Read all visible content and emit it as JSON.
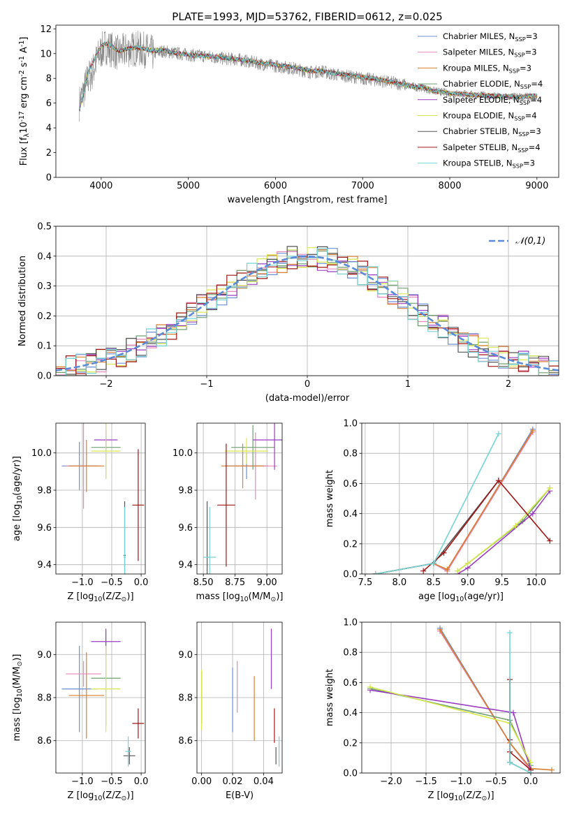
{
  "figure_title": "PLATE=1993, MJD=53762, FIBERID=0612, z=0.025",
  "model_names": [
    "Chabrier MILES",
    "Salpeter MILES",
    "Kroupa MILES",
    "Chabrier ELODIE",
    "Salpeter ELODIE",
    "Kroupa ELODIE",
    "Chabrier STELIB",
    "Salpeter STELIB",
    "Kroupa STELIB"
  ],
  "model_colors": [
    "#6b8fd6",
    "#e888b8",
    "#d67f2e",
    "#6f9f6f",
    "#9a3cc0",
    "#d8e84a",
    "#555555",
    "#a01515",
    "#76d4d4"
  ],
  "model_nssp": [
    3,
    3,
    3,
    4,
    4,
    4,
    3,
    4,
    3
  ],
  "chart_data": [
    {
      "id": "spectrum",
      "type": "line",
      "title": "",
      "xlabel": "wavelength [Angstrom, rest frame]",
      "ylabel": "Flux [f$_\\lambda$10$^{-17}$ erg cm$^{-2}$ s$^{-1}$ A$^{-1}$]",
      "xlim": [
        3480,
        9250
      ],
      "ylim": [
        0,
        12.3
      ],
      "xticks": [
        4000,
        5000,
        6000,
        7000,
        8000,
        9000
      ],
      "yticks": [
        0,
        2,
        4,
        6,
        8,
        10,
        12
      ],
      "grid": false,
      "legend_position": "upper right",
      "legend": [
        "Chabrier MILES, N$_{SSP}$=3",
        "Salpeter MILES, N$_{SSP}$=3",
        "Kroupa MILES, N$_{SSP}$=3",
        "Chabrier ELODIE, N$_{SSP}$=4",
        "Salpeter ELODIE, N$_{SSP}$=4",
        "Kroupa ELODIE, N$_{SSP}$=4",
        "Chabrier STELIB, N$_{SSP}$=3",
        "Salpeter STELIB, N$_{SSP}$=4",
        "Kroupa STELIB, N$_{SSP}$=3"
      ],
      "data_series": {
        "name": "data",
        "color": "#888888",
        "x": [
          3750,
          3800,
          3850,
          3900,
          3950,
          4000,
          4050,
          4100,
          4200,
          4300,
          4400,
          4500,
          4600,
          4700,
          4800,
          4900,
          5000,
          5200,
          5400,
          5600,
          5800,
          6000,
          6200,
          6400,
          6550,
          6600,
          6800,
          7000,
          7200,
          7400,
          7600,
          7700,
          7800,
          7900,
          8000,
          8200,
          8400,
          8600,
          8800,
          9000
        ],
        "y": [
          6.0,
          7.0,
          8.0,
          8.5,
          9.5,
          10.2,
          10.6,
          10.4,
          10.0,
          10.3,
          10.4,
          10.3,
          10.0,
          10.2,
          10.1,
          10.0,
          9.9,
          9.8,
          9.6,
          9.5,
          9.2,
          9.0,
          8.8,
          8.5,
          8.6,
          8.4,
          8.2,
          8.0,
          7.8,
          7.6,
          7.3,
          7.2,
          7.0,
          6.9,
          6.8,
          6.7,
          6.6,
          6.5,
          6.5,
          6.5
        ]
      },
      "model_x": [
        3750,
        3800,
        3850,
        3900,
        3950,
        4000,
        4050,
        4100,
        4200,
        4300,
        4400,
        4500,
        4600,
        4700,
        4800,
        4900,
        5000,
        5200,
        5400,
        5600,
        5800,
        6000,
        6200,
        6400,
        6550,
        6600,
        6800,
        7000,
        7200,
        7400,
        7600,
        7700,
        7800,
        7900,
        8000,
        8200,
        8400,
        8600,
        8800,
        9000
      ],
      "model_y": [
        5.5,
        6.8,
        8.5,
        9.2,
        10.0,
        10.6,
        10.8,
        10.7,
        10.2,
        10.4,
        10.5,
        10.4,
        10.2,
        10.3,
        10.1,
        10.0,
        9.9,
        9.8,
        9.7,
        9.5,
        9.3,
        9.1,
        8.9,
        8.6,
        8.6,
        8.5,
        8.3,
        8.1,
        7.9,
        7.6,
        7.3,
        7.3,
        7.0,
        6.9,
        6.8,
        6.7,
        6.6,
        6.55,
        6.5,
        6.6
      ]
    },
    {
      "id": "residuals",
      "type": "histogram",
      "title": "",
      "xlabel": "(data-model)/error",
      "ylabel": "Normed distribution",
      "xlim": [
        -2.5,
        2.5
      ],
      "ylim": [
        0,
        0.5
      ],
      "xticks": [
        -2,
        -1,
        0,
        1,
        2
      ],
      "yticks": [
        0.0,
        0.1,
        0.2,
        0.3,
        0.4,
        0.5
      ],
      "grid": true,
      "legend_position": "upper right",
      "legend": [
        "$\\mathcal{N}(0,1)$"
      ],
      "bin_width": 0.1,
      "reference_curve": {
        "name": "N(0,1)",
        "color": "#5a8ad8",
        "style": "dashed"
      }
    },
    {
      "id": "age_vs_Z",
      "type": "errorbar",
      "xlabel": "Z [log$_{10}$($Z/Z_\\odot$)]",
      "ylabel": "age  [log$_{10}$($age/yr$)]",
      "xlim": [
        -1.45,
        0.07
      ],
      "ylim": [
        9.35,
        10.16
      ],
      "xticks": [
        -1.0,
        -0.5,
        0.0
      ],
      "yticks": [
        9.4,
        9.6,
        9.8,
        10.0
      ],
      "grid": true,
      "points": [
        {
          "x": -1.05,
          "y": 9.93,
          "xerr": 0.3,
          "yerr": 0.13
        },
        {
          "x": -0.98,
          "y": 9.93,
          "xerr": 0.3,
          "yerr": 0.23
        },
        {
          "x": -0.93,
          "y": 9.93,
          "xerr": 0.3,
          "yerr": 0.14
        },
        {
          "x": -0.6,
          "y": 10.03,
          "xerr": 0.25,
          "yerr": 0.17
        },
        {
          "x": -0.6,
          "y": 10.07,
          "xerr": 0.2,
          "yerr": 0.05
        },
        {
          "x": -0.6,
          "y": 10.01,
          "xerr": 0.25,
          "yerr": 0.15
        },
        {
          "x": -0.28,
          "y": 9.45,
          "xerr": 0.02,
          "yerr": 0.29
        },
        {
          "x": -0.05,
          "y": 9.72,
          "xerr": 0.1,
          "yerr": 0.3
        },
        {
          "x": -0.28,
          "y": 9.44,
          "xerr": 0.02,
          "yerr": 0.27
        }
      ]
    },
    {
      "id": "age_vs_mass",
      "type": "errorbar",
      "xlabel": "mass [log$_{10}$($M/M_\\odot$)]",
      "ylabel": "",
      "xlim": [
        8.45,
        9.12
      ],
      "ylim": [
        9.35,
        10.16
      ],
      "xticks": [
        8.5,
        8.75,
        9.0
      ],
      "yticks": [
        9.4,
        9.6,
        9.8,
        10.0
      ],
      "grid": true,
      "points": [
        {
          "x": 8.84,
          "y": 9.93,
          "xerr": 0.17,
          "yerr": 0.07
        },
        {
          "x": 8.91,
          "y": 9.93,
          "xerr": 0.17,
          "yerr": 0.18
        },
        {
          "x": 8.81,
          "y": 9.93,
          "xerr": 0.17,
          "yerr": 0.12
        },
        {
          "x": 8.89,
          "y": 10.03,
          "xerr": 0.17,
          "yerr": 0.12
        },
        {
          "x": 9.06,
          "y": 10.07,
          "xerr": 0.17,
          "yerr": 0.16
        },
        {
          "x": 8.84,
          "y": 10.01,
          "xerr": 0.17,
          "yerr": 0.07
        },
        {
          "x": 8.53,
          "y": 9.45,
          "xerr": 0.0,
          "yerr": 0.29
        },
        {
          "x": 8.68,
          "y": 9.72,
          "xerr": 0.07,
          "yerr": 0.33
        },
        {
          "x": 8.55,
          "y": 9.44,
          "xerr": 0.05,
          "yerr": 0.27
        }
      ]
    },
    {
      "id": "weight_vs_age",
      "type": "line",
      "xlabel": "age  [log$_{10}$($age/yr$)]",
      "ylabel": "mass weight",
      "xlim": [
        7.45,
        10.35
      ],
      "ylim": [
        0,
        1.0
      ],
      "xticks": [
        7.5,
        8.0,
        8.5,
        9.0,
        9.5,
        10.0
      ],
      "yticks": [
        0.0,
        0.2,
        0.4,
        0.6,
        0.8,
        1.0
      ],
      "grid": true,
      "series": [
        {
          "x": [
            7.65,
            8.5,
            8.7,
            9.95
          ],
          "y": [
            0.0,
            0.07,
            0.02,
            0.96
          ]
        },
        {
          "x": [
            7.65,
            8.5,
            8.7,
            9.95
          ],
          "y": [
            0.0,
            0.07,
            0.02,
            0.94
          ]
        },
        {
          "x": [
            7.65,
            8.5,
            8.7,
            9.95
          ],
          "y": [
            0.0,
            0.07,
            0.03,
            0.95
          ]
        },
        {
          "x": [
            8.85,
            9.0,
            9.8,
            10.2
          ],
          "y": [
            0.02,
            0.07,
            0.35,
            0.57
          ]
        },
        {
          "x": [
            8.85,
            9.0,
            9.95,
            10.2
          ],
          "y": [
            0.0,
            0.04,
            0.4,
            0.55
          ]
        },
        {
          "x": [
            8.85,
            9.0,
            9.7,
            10.2
          ],
          "y": [
            0.02,
            0.07,
            0.32,
            0.57
          ]
        },
        {
          "x": [
            7.65,
            8.5,
            9.45
          ],
          "y": [
            0.0,
            0.07,
            0.62
          ]
        },
        {
          "x": [
            8.35,
            8.65,
            9.45,
            10.2
          ],
          "y": [
            0.02,
            0.14,
            0.62,
            0.22
          ]
        },
        {
          "x": [
            7.65,
            8.5,
            9.45
          ],
          "y": [
            0.0,
            0.07,
            0.93
          ]
        }
      ]
    },
    {
      "id": "mass_vs_Z",
      "type": "errorbar",
      "xlabel": "Z [log$_{10}$($Z/Z_\\odot$)]",
      "ylabel": "mass [log$_{10}$($M/M_\\odot$)]",
      "xlim": [
        -1.45,
        0.07
      ],
      "ylim": [
        8.45,
        9.15
      ],
      "xticks": [
        -1.0,
        -0.5,
        0.0
      ],
      "yticks": [
        8.6,
        8.8,
        9.0
      ],
      "grid": true,
      "points": [
        {
          "x": -1.05,
          "y": 8.84,
          "xerr": 0.3,
          "yerr": 0.2
        },
        {
          "x": -0.98,
          "y": 8.91,
          "xerr": 0.3,
          "yerr": 0.06
        },
        {
          "x": -0.93,
          "y": 8.81,
          "xerr": 0.3,
          "yerr": 0.2
        },
        {
          "x": -0.6,
          "y": 8.89,
          "xerr": 0.25,
          "yerr": 0.22
        },
        {
          "x": -0.6,
          "y": 9.06,
          "xerr": 0.25,
          "yerr": 0.06
        },
        {
          "x": -0.6,
          "y": 8.84,
          "xerr": 0.25,
          "yerr": 0.2
        },
        {
          "x": -0.2,
          "y": 8.53,
          "xerr": 0.1,
          "yerr": 0.04
        },
        {
          "x": -0.05,
          "y": 8.68,
          "xerr": 0.1,
          "yerr": 0.07
        },
        {
          "x": -0.22,
          "y": 8.55,
          "xerr": 0.05,
          "yerr": 0.07
        }
      ]
    },
    {
      "id": "mass_vs_ebv",
      "type": "errorbar",
      "xlabel": "E(B-V)",
      "ylabel": "",
      "xlim": [
        -0.003,
        0.052
      ],
      "ylim": [
        8.45,
        9.15
      ],
      "xticks": [
        0.0,
        0.02,
        0.04
      ],
      "yticks": [
        8.6,
        8.8,
        9.0
      ],
      "grid": true,
      "points": [
        {
          "x": 0.02,
          "y": 8.79,
          "xerr": 0,
          "yerr": 0.15
        },
        {
          "x": 0.023,
          "y": 8.85,
          "xerr": 0,
          "yerr": 0.12
        },
        {
          "x": 0.034,
          "y": 8.75,
          "xerr": 0,
          "yerr": 0.15
        },
        {
          "x": 0.0,
          "y": 8.8,
          "xerr": 0,
          "yerr": 0.12
        },
        {
          "x": 0.045,
          "y": 8.98,
          "xerr": 0,
          "yerr": 0.14
        },
        {
          "x": 0.0,
          "y": 8.79,
          "xerr": 0,
          "yerr": 0.14
        },
        {
          "x": 0.048,
          "y": 8.53,
          "xerr": 0,
          "yerr": 0.04
        },
        {
          "x": 0.047,
          "y": 8.67,
          "xerr": 0,
          "yerr": 0.08
        },
        {
          "x": 0.05,
          "y": 8.55,
          "xerr": 0,
          "yerr": 0.07
        }
      ]
    },
    {
      "id": "weight_vs_Z",
      "type": "line",
      "xlabel": "Z [log$_{10}$($Z/Z_\\odot$)]",
      "ylabel": "mass weight",
      "xlim": [
        -2.42,
        0.42
      ],
      "ylim": [
        0,
        1.0
      ],
      "xticks": [
        -2.0,
        -1.5,
        -1.0,
        -0.5,
        0.0
      ],
      "yticks": [
        0.0,
        0.2,
        0.4,
        0.6,
        0.8,
        1.0
      ],
      "grid": true,
      "series": [
        {
          "x": [
            -1.3,
            -0.3,
            0.0
          ],
          "y": [
            0.96,
            0.2,
            0.02
          ]
        },
        {
          "x": [
            -1.3,
            -0.3,
            0.0
          ],
          "y": [
            0.94,
            0.2,
            0.02
          ]
        },
        {
          "x": [
            -1.3,
            -0.3,
            0.0,
            0.3
          ],
          "y": [
            0.95,
            0.2,
            0.03,
            0.02
          ]
        },
        {
          "x": [
            -2.3,
            -0.3,
            0.0
          ],
          "y": [
            0.56,
            0.35,
            0.05
          ]
        },
        {
          "x": [
            -2.3,
            -0.25,
            0.0
          ],
          "y": [
            0.55,
            0.4,
            0.02
          ]
        },
        {
          "x": [
            -2.3,
            -0.3,
            0.0
          ],
          "y": [
            0.57,
            0.33,
            0.07
          ]
        },
        {
          "x": [
            -0.3,
            -0.3,
            0.0
          ],
          "y": [
            0.62,
            0.07,
            0.0
          ]
        },
        {
          "x": [
            -0.3,
            -0.3,
            -0.3,
            0.0
          ],
          "y": [
            0.62,
            0.22,
            0.14,
            0.02
          ]
        },
        {
          "x": [
            -0.3,
            -0.3,
            0.0
          ],
          "y": [
            0.93,
            0.07,
            0.0
          ]
        }
      ]
    }
  ]
}
